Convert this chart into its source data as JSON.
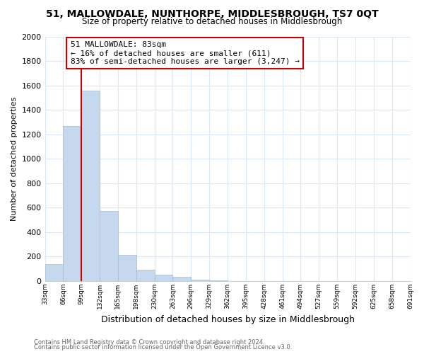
{
  "title": "51, MALLOWDALE, NUNTHORPE, MIDDLESBROUGH, TS7 0QT",
  "subtitle": "Size of property relative to detached houses in Middlesbrough",
  "xlabel": "Distribution of detached houses by size in Middlesbrough",
  "ylabel": "Number of detached properties",
  "bar_values": [
    140,
    1265,
    1560,
    575,
    215,
    95,
    55,
    35,
    10,
    5,
    2,
    1,
    0,
    0,
    0,
    0,
    0,
    0,
    0,
    0
  ],
  "bin_labels": [
    "33sqm",
    "66sqm",
    "99sqm",
    "132sqm",
    "165sqm",
    "198sqm",
    "230sqm",
    "263sqm",
    "296sqm",
    "329sqm",
    "362sqm",
    "395sqm",
    "428sqm",
    "461sqm",
    "494sqm",
    "527sqm",
    "559sqm",
    "592sqm",
    "625sqm",
    "658sqm",
    "691sqm"
  ],
  "bar_color": "#c5d8ed",
  "bar_edge_color": "#a0bcd8",
  "marker_color": "#cc0000",
  "marker_bin_index": 2,
  "ylim": [
    0,
    2000
  ],
  "yticks": [
    0,
    200,
    400,
    600,
    800,
    1000,
    1200,
    1400,
    1600,
    1800,
    2000
  ],
  "annotation_title": "51 MALLOWDALE: 83sqm",
  "annotation_line1": "← 16% of detached houses are smaller (611)",
  "annotation_line2": "83% of semi-detached houses are larger (3,247) →",
  "annotation_box_color": "#ffffff",
  "annotation_box_edge": "#cc0000",
  "footer_line1": "Contains HM Land Registry data © Crown copyright and database right 2024.",
  "footer_line2": "Contains public sector information licensed under the Open Government Licence v3.0.",
  "background_color": "#ffffff",
  "grid_color": "#dce8f5"
}
